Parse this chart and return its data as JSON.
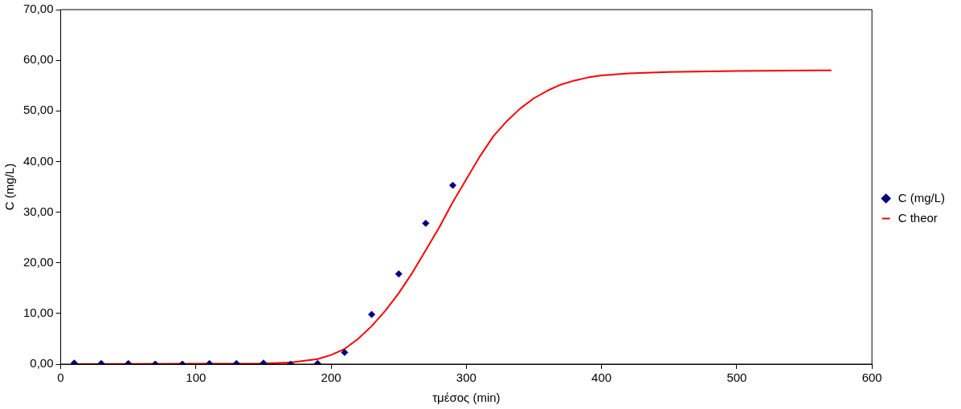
{
  "chart_data": {
    "type": "scatter",
    "xlabel": "τμέσος (min)",
    "ylabel": "C (mg/L)",
    "xlim": [
      0,
      600
    ],
    "xticks": [
      0,
      100,
      200,
      300,
      400,
      500,
      600
    ],
    "ylim": [
      0,
      70
    ],
    "yticks": [
      {
        "value": 0,
        "label": "0,00"
      },
      {
        "value": 10,
        "label": "10,00"
      },
      {
        "value": 20,
        "label": "20,00"
      },
      {
        "value": 30,
        "label": "30,00"
      },
      {
        "value": 40,
        "label": "40,00"
      },
      {
        "value": 50,
        "label": "50,00"
      },
      {
        "value": 60,
        "label": "60,00"
      },
      {
        "value": 70,
        "label": "70,00"
      }
    ],
    "grid": false,
    "legend": "right",
    "series": [
      {
        "name": "C (mg/L)",
        "marker": "diamond",
        "color": "#000080",
        "x": [
          10,
          30,
          50,
          70,
          90,
          110,
          130,
          150,
          170,
          190,
          210,
          230,
          250,
          270,
          290
        ],
        "values": [
          0.2,
          0.1,
          0.1,
          0,
          0,
          0.1,
          0.1,
          0.2,
          0,
          0.1,
          2.3,
          9.8,
          17.8,
          27.8,
          35.3
        ]
      },
      {
        "name": "C theor",
        "type": "line",
        "marker": "none",
        "line_style": "solid",
        "color": "#ff0000",
        "x": [
          10,
          150,
          170,
          190,
          200,
          210,
          220,
          230,
          240,
          250,
          260,
          270,
          280,
          290,
          300,
          310,
          320,
          330,
          340,
          350,
          360,
          370,
          380,
          390,
          400,
          420,
          450,
          500,
          570
        ],
        "values": [
          0,
          0.1,
          0.3,
          1,
          1.8,
          3,
          5,
          7.5,
          10.5,
          14,
          18,
          22.5,
          27,
          32,
          36.5,
          41,
          45,
          48,
          50.5,
          52.5,
          54,
          55.2,
          56,
          56.6,
          57,
          57.4,
          57.7,
          57.9,
          58
        ]
      }
    ]
  }
}
